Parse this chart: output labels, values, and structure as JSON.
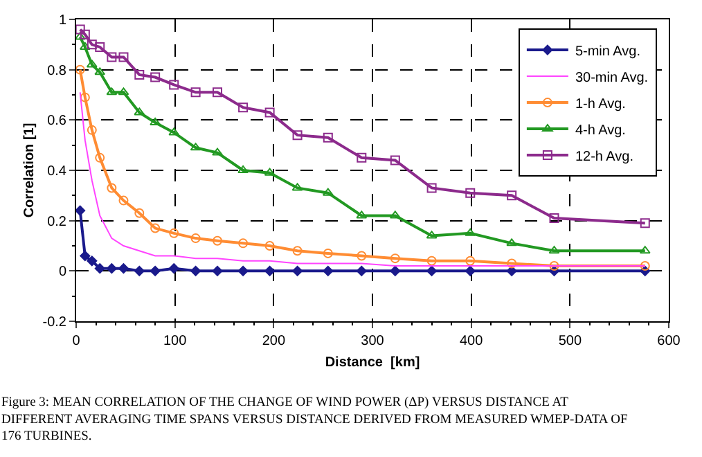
{
  "chart_data": {
    "type": "line",
    "xlabel": "Distance  [km]",
    "ylabel": "Correlation [1]",
    "x": [
      4,
      9,
      16,
      24,
      36,
      48,
      64,
      80,
      99,
      121,
      143,
      169,
      196,
      224,
      255,
      289,
      323,
      360,
      399,
      441,
      484,
      576
    ],
    "xlim": [
      0,
      600
    ],
    "xticks": [
      0,
      100,
      200,
      300,
      400,
      500,
      600
    ],
    "ylim": [
      -0.2,
      1
    ],
    "yticks": [
      -0.2,
      0,
      0.2,
      0.4,
      0.6,
      0.8,
      1
    ],
    "grid": true,
    "legend": "top right",
    "line_style": "solid",
    "series": [
      {
        "name": "5-min Avg.",
        "color": "#1a1a8c",
        "marker": "diamond",
        "values": [
          0.24,
          0.06,
          0.04,
          0.01,
          0.01,
          0.01,
          0.0,
          0.0,
          0.01,
          0.0,
          0.0,
          0.0,
          0.0,
          0.0,
          0.0,
          0.0,
          0.0,
          0.0,
          0.0,
          0.0,
          0.0,
          0.0
        ]
      },
      {
        "name": "30-min Avg.",
        "color": "#ff44ff",
        "marker": "none",
        "values": [
          0.71,
          0.52,
          0.36,
          0.22,
          0.13,
          0.1,
          0.08,
          0.06,
          0.06,
          0.05,
          0.05,
          0.04,
          0.04,
          0.03,
          0.03,
          0.03,
          0.02,
          0.02,
          0.02,
          0.02,
          0.02,
          0.02
        ]
      },
      {
        "name": "1-h Avg.",
        "color": "#ff8c33",
        "marker": "circle",
        "values": [
          0.8,
          0.69,
          0.56,
          0.45,
          0.33,
          0.28,
          0.23,
          0.17,
          0.15,
          0.13,
          0.12,
          0.11,
          0.1,
          0.08,
          0.07,
          0.06,
          0.05,
          0.04,
          0.04,
          0.03,
          0.02,
          0.02
        ]
      },
      {
        "name": "4-h Avg.",
        "color": "#229922",
        "marker": "triangle",
        "values": [
          0.93,
          0.89,
          0.82,
          0.79,
          0.71,
          0.71,
          0.63,
          0.59,
          0.55,
          0.49,
          0.47,
          0.4,
          0.39,
          0.33,
          0.31,
          0.22,
          0.22,
          0.14,
          0.15,
          0.11,
          0.08,
          0.08
        ]
      },
      {
        "name": "12-h Avg.",
        "color": "#8c2a8c",
        "marker": "square",
        "values": [
          0.96,
          0.94,
          0.9,
          0.89,
          0.85,
          0.85,
          0.78,
          0.77,
          0.74,
          0.71,
          0.71,
          0.65,
          0.63,
          0.54,
          0.53,
          0.45,
          0.44,
          0.33,
          0.31,
          0.3,
          0.21,
          0.19
        ]
      }
    ],
    "annotations": [
      "Figure 3: MEAN CORRELATION OF THE CHANGE OF WIND POWER (ΔP) VERSUS DISTANCE AT DIFFERENT AVERAGING TIME SPANS VERSUS DISTANCE DERIVED FROM MEASURED WMEP-DATA OF 176 TURBINES."
    ]
  }
}
